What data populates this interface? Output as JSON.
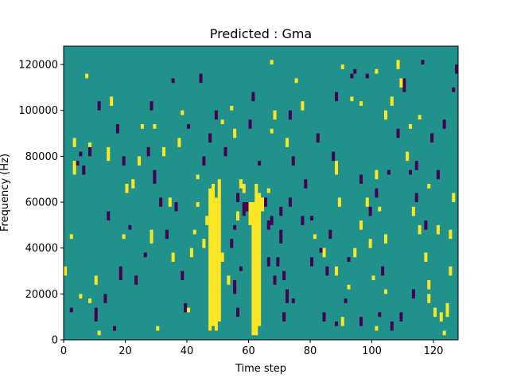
{
  "chart_data": {
    "type": "heatmap",
    "title": "Predicted : Gma",
    "xlabel": "Time step",
    "ylabel": "Frequency (Hz)",
    "xlim": [
      0,
      128
    ],
    "ylim": [
      0,
      128000
    ],
    "xticks": [
      0,
      20,
      40,
      60,
      80,
      100,
      120
    ],
    "yticks": [
      0,
      20000,
      40000,
      60000,
      80000,
      100000,
      120000
    ],
    "ytick_labels": [
      "0",
      "20000",
      "40000",
      "60000",
      "80000",
      "100000",
      "120000"
    ],
    "grid": false,
    "colormap": "viridis",
    "levels": [
      -1,
      0,
      1
    ],
    "level_colors": {
      "-1": "#440154",
      "0": "#21918c",
      "1": "#fde725"
    },
    "background_level": 0,
    "n_time_steps": 128,
    "n_freq_bins": 64,
    "bin_height_hz": 2000,
    "high_cells": [
      [
        47,
        2,
        33
      ],
      [
        48,
        3,
        34
      ],
      [
        49,
        2,
        31
      ],
      [
        50,
        4,
        35
      ],
      [
        61,
        1,
        30
      ],
      [
        62,
        1,
        34
      ],
      [
        63,
        3,
        32
      ],
      [
        60,
        25,
        30
      ],
      [
        64,
        28,
        31
      ],
      [
        66,
        32,
        33
      ],
      [
        102,
        28,
        29
      ],
      [
        104,
        21,
        23
      ],
      [
        101,
        2,
        3
      ],
      [
        104,
        10,
        11
      ],
      [
        124,
        5,
        8
      ],
      [
        125,
        22,
        24
      ],
      [
        126,
        30,
        32
      ],
      [
        88,
        14,
        16
      ],
      [
        101,
        35,
        37
      ],
      [
        118,
        8,
        10
      ],
      [
        28,
        21,
        24
      ],
      [
        34,
        29,
        31
      ],
      [
        40,
        6,
        7
      ],
      [
        41,
        18,
        20
      ],
      [
        42,
        23,
        24
      ],
      [
        43,
        29,
        30
      ],
      [
        51,
        17,
        19
      ],
      [
        53,
        12,
        14
      ],
      [
        51,
        47,
        48
      ],
      [
        54,
        50,
        51
      ],
      [
        67,
        45,
        46
      ],
      [
        68,
        48,
        50
      ],
      [
        75,
        56,
        57
      ],
      [
        96,
        51,
        52
      ],
      [
        101,
        58,
        59
      ],
      [
        112,
        46,
        47
      ],
      [
        115,
        48,
        49
      ],
      [
        90,
        59,
        60
      ],
      [
        88,
        36,
        39
      ],
      [
        89,
        29,
        31
      ],
      [
        94,
        18,
        20
      ],
      [
        0,
        14,
        16
      ],
      [
        3,
        36,
        39
      ],
      [
        2,
        22,
        23
      ],
      [
        8,
        8,
        9
      ],
      [
        10,
        12,
        14
      ],
      [
        7,
        57,
        58
      ],
      [
        14,
        39,
        42
      ],
      [
        22,
        33,
        35
      ],
      [
        30,
        2,
        3
      ],
      [
        35,
        17,
        19
      ],
      [
        38,
        49,
        50
      ],
      [
        43,
        35,
        36
      ],
      [
        57,
        33,
        35
      ],
      [
        55,
        44,
        46
      ],
      [
        67,
        60,
        61
      ],
      [
        72,
        42,
        44
      ],
      [
        93,
        52,
        53
      ],
      [
        108,
        59,
        61
      ],
      [
        113,
        27,
        29
      ],
      [
        115,
        23,
        25
      ],
      [
        117,
        17,
        19
      ],
      [
        118,
        11,
        13
      ],
      [
        120,
        5,
        7
      ],
      [
        122,
        4,
        6
      ],
      [
        125,
        14,
        16
      ],
      [
        100,
        13,
        14
      ],
      [
        84,
        18,
        20
      ],
      [
        81,
        22,
        23
      ],
      [
        77,
        50,
        52
      ],
      [
        98,
        29,
        31
      ],
      [
        96,
        24,
        26
      ],
      [
        92,
        11,
        12
      ],
      [
        123,
        1,
        2
      ],
      [
        20,
        32,
        34
      ],
      [
        25,
        46,
        47
      ],
      [
        11,
        1,
        2
      ],
      [
        15,
        51,
        53
      ],
      [
        29,
        46,
        47
      ],
      [
        32,
        40,
        42
      ],
      [
        37,
        42,
        44
      ],
      [
        5,
        9,
        10
      ],
      [
        3,
        42,
        44
      ],
      [
        8,
        42,
        43
      ],
      [
        45,
        20,
        22
      ],
      [
        46,
        25,
        27
      ],
      [
        58,
        32,
        34
      ],
      [
        56,
        26,
        28
      ],
      [
        19,
        22,
        23
      ],
      [
        24,
        38,
        40
      ],
      [
        121,
        23,
        25
      ],
      [
        118,
        33,
        34
      ],
      [
        111,
        39,
        41
      ],
      [
        104,
        48,
        50
      ],
      [
        106,
        51,
        53
      ],
      [
        109,
        55,
        57
      ],
      [
        99,
        20,
        22
      ],
      [
        90,
        3,
        5
      ]
    ],
    "low_cells": [
      [
        58,
        27,
        30
      ],
      [
        59,
        28,
        30
      ],
      [
        56,
        5,
        7
      ],
      [
        55,
        10,
        13
      ],
      [
        57,
        15,
        16
      ],
      [
        54,
        20,
        22
      ],
      [
        55,
        24,
        25
      ],
      [
        65,
        29,
        31
      ],
      [
        66,
        24,
        26
      ],
      [
        67,
        25,
        27
      ],
      [
        70,
        21,
        24
      ],
      [
        71,
        13,
        15
      ],
      [
        70,
        27,
        29
      ],
      [
        72,
        8,
        11
      ],
      [
        71,
        4,
        6
      ],
      [
        69,
        16,
        18
      ],
      [
        88,
        3,
        4
      ],
      [
        96,
        3,
        5
      ],
      [
        105,
        36,
        37
      ],
      [
        99,
        27,
        29
      ],
      [
        91,
        8,
        9
      ],
      [
        83,
        19,
        20
      ],
      [
        86,
        22,
        24
      ],
      [
        103,
        14,
        16
      ],
      [
        106,
        2,
        4
      ],
      [
        6,
        36,
        38
      ],
      [
        4,
        38,
        39
      ],
      [
        5,
        40,
        41
      ],
      [
        8,
        40,
        42
      ],
      [
        19,
        38,
        40
      ],
      [
        27,
        40,
        42
      ],
      [
        18,
        13,
        16
      ],
      [
        13,
        8,
        10
      ],
      [
        10,
        4,
        7
      ],
      [
        16,
        2,
        3
      ],
      [
        31,
        29,
        31
      ],
      [
        44,
        56,
        58
      ],
      [
        38,
        13,
        15
      ],
      [
        39,
        6,
        8
      ],
      [
        36,
        28,
        30
      ],
      [
        52,
        40,
        42
      ],
      [
        56,
        30,
        32
      ],
      [
        63,
        38,
        39
      ],
      [
        73,
        48,
        50
      ],
      [
        77,
        25,
        27
      ],
      [
        80,
        26,
        27
      ],
      [
        85,
        14,
        16
      ],
      [
        94,
        58,
        59
      ],
      [
        110,
        54,
        57
      ],
      [
        116,
        60,
        61
      ],
      [
        98,
        57,
        58
      ],
      [
        108,
        44,
        46
      ],
      [
        112,
        36,
        37
      ],
      [
        114,
        30,
        32
      ],
      [
        117,
        24,
        26
      ],
      [
        119,
        43,
        45
      ],
      [
        121,
        35,
        37
      ],
      [
        123,
        46,
        48
      ],
      [
        126,
        54,
        55
      ],
      [
        127,
        58,
        60
      ],
      [
        113,
        9,
        11
      ],
      [
        109,
        4,
        6
      ],
      [
        102,
        5,
        6
      ],
      [
        92,
        17,
        18
      ],
      [
        2,
        6,
        7
      ],
      [
        11,
        50,
        52
      ],
      [
        23,
        12,
        14
      ],
      [
        26,
        18,
        19
      ],
      [
        33,
        22,
        24
      ],
      [
        28,
        50,
        52
      ],
      [
        45,
        38,
        40
      ],
      [
        47,
        43,
        45
      ],
      [
        40,
        46,
        47
      ],
      [
        49,
        48,
        50
      ],
      [
        61,
        52,
        54
      ],
      [
        74,
        38,
        40
      ],
      [
        78,
        33,
        35
      ],
      [
        82,
        43,
        45
      ],
      [
        87,
        39,
        41
      ],
      [
        96,
        34,
        36
      ],
      [
        101,
        31,
        33
      ],
      [
        114,
        37,
        39
      ],
      [
        88,
        52,
        54
      ],
      [
        93,
        57,
        58
      ],
      [
        29,
        34,
        37
      ],
      [
        35,
        56,
        57
      ],
      [
        14,
        26,
        28
      ],
      [
        21,
        24,
        25
      ],
      [
        17,
        45,
        47
      ],
      [
        74,
        8,
        9
      ],
      [
        80,
        16,
        18
      ],
      [
        84,
        4,
        6
      ],
      [
        66,
        16,
        18
      ],
      [
        68,
        12,
        14
      ],
      [
        73,
        29,
        31
      ],
      [
        60,
        46,
        48
      ]
    ]
  }
}
